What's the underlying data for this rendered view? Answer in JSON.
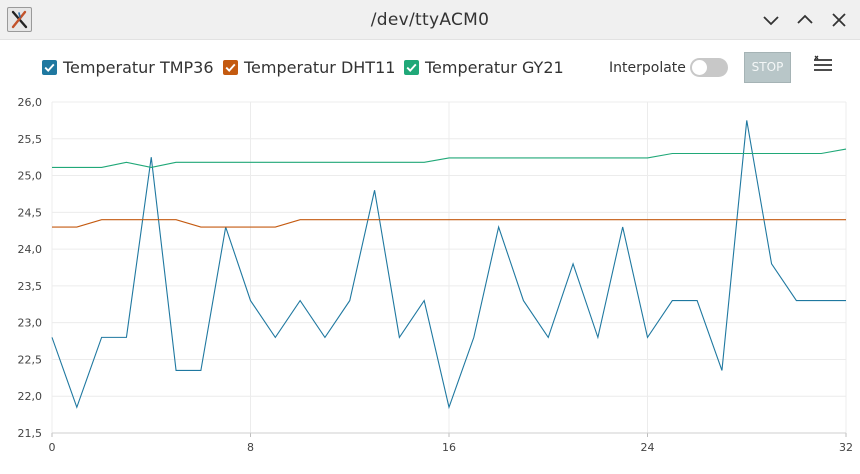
{
  "window": {
    "title": "/dev/ttyACM0"
  },
  "toolbar": {
    "interpolate_label": "Interpolate",
    "interpolate_on": false,
    "stop_label": "STOP"
  },
  "legend": [
    {
      "label": "Temperatur TMP36",
      "color": "#1f78a0",
      "checked": true
    },
    {
      "label": "Temperatur DHT11",
      "color": "#c45a10",
      "checked": true
    },
    {
      "label": "Temperatur GY21",
      "color": "#20a878",
      "checked": true
    }
  ],
  "chart_data": {
    "type": "line",
    "x": [
      0,
      1,
      2,
      3,
      4,
      5,
      6,
      7,
      8,
      9,
      10,
      11,
      12,
      13,
      14,
      15,
      16,
      17,
      18,
      19,
      20,
      21,
      22,
      23,
      24,
      25,
      26,
      27,
      28,
      29,
      30,
      31,
      32
    ],
    "series": [
      {
        "name": "Temperatur TMP36",
        "color": "#1f78a0",
        "values": [
          22.8,
          21.85,
          22.8,
          22.8,
          25.25,
          22.35,
          22.35,
          24.3,
          23.3,
          22.8,
          23.3,
          22.8,
          23.3,
          24.8,
          22.8,
          23.3,
          21.85,
          22.8,
          24.3,
          23.3,
          22.8,
          23.8,
          22.8,
          24.3,
          22.8,
          23.3,
          23.3,
          22.35,
          25.75,
          23.8,
          23.3,
          23.3,
          23.3
        ]
      },
      {
        "name": "Temperatur DHT11",
        "color": "#c45a10",
        "values": [
          24.3,
          24.3,
          24.4,
          24.4,
          24.4,
          24.4,
          24.3,
          24.3,
          24.3,
          24.3,
          24.4,
          24.4,
          24.4,
          24.4,
          24.4,
          24.4,
          24.4,
          24.4,
          24.4,
          24.4,
          24.4,
          24.4,
          24.4,
          24.4,
          24.4,
          24.4,
          24.4,
          24.4,
          24.4,
          24.4,
          24.4,
          24.4,
          24.4
        ]
      },
      {
        "name": "Temperatur GY21",
        "color": "#20a878",
        "values": [
          25.11,
          25.11,
          25.11,
          25.18,
          25.11,
          25.18,
          25.18,
          25.18,
          25.18,
          25.18,
          25.18,
          25.18,
          25.18,
          25.18,
          25.18,
          25.18,
          25.24,
          25.24,
          25.24,
          25.24,
          25.24,
          25.24,
          25.24,
          25.24,
          25.24,
          25.3,
          25.3,
          25.3,
          25.3,
          25.3,
          25.3,
          25.3,
          25.36
        ]
      }
    ],
    "xlim": [
      0,
      32
    ],
    "ylim": [
      21.5,
      26.0
    ],
    "x_ticks": [
      0,
      8,
      16,
      24,
      32
    ],
    "x_tick_labels": [
      "0",
      "8",
      "16",
      "24",
      "32"
    ],
    "y_ticks": [
      21.5,
      22.0,
      22.5,
      23.0,
      23.5,
      24.0,
      24.5,
      25.0,
      25.5,
      26.0
    ],
    "y_tick_labels": [
      "21,5",
      "22,0",
      "22,5",
      "23,0",
      "23,5",
      "24,0",
      "24,5",
      "25,0",
      "25,5",
      "26,0"
    ],
    "grid": true
  }
}
